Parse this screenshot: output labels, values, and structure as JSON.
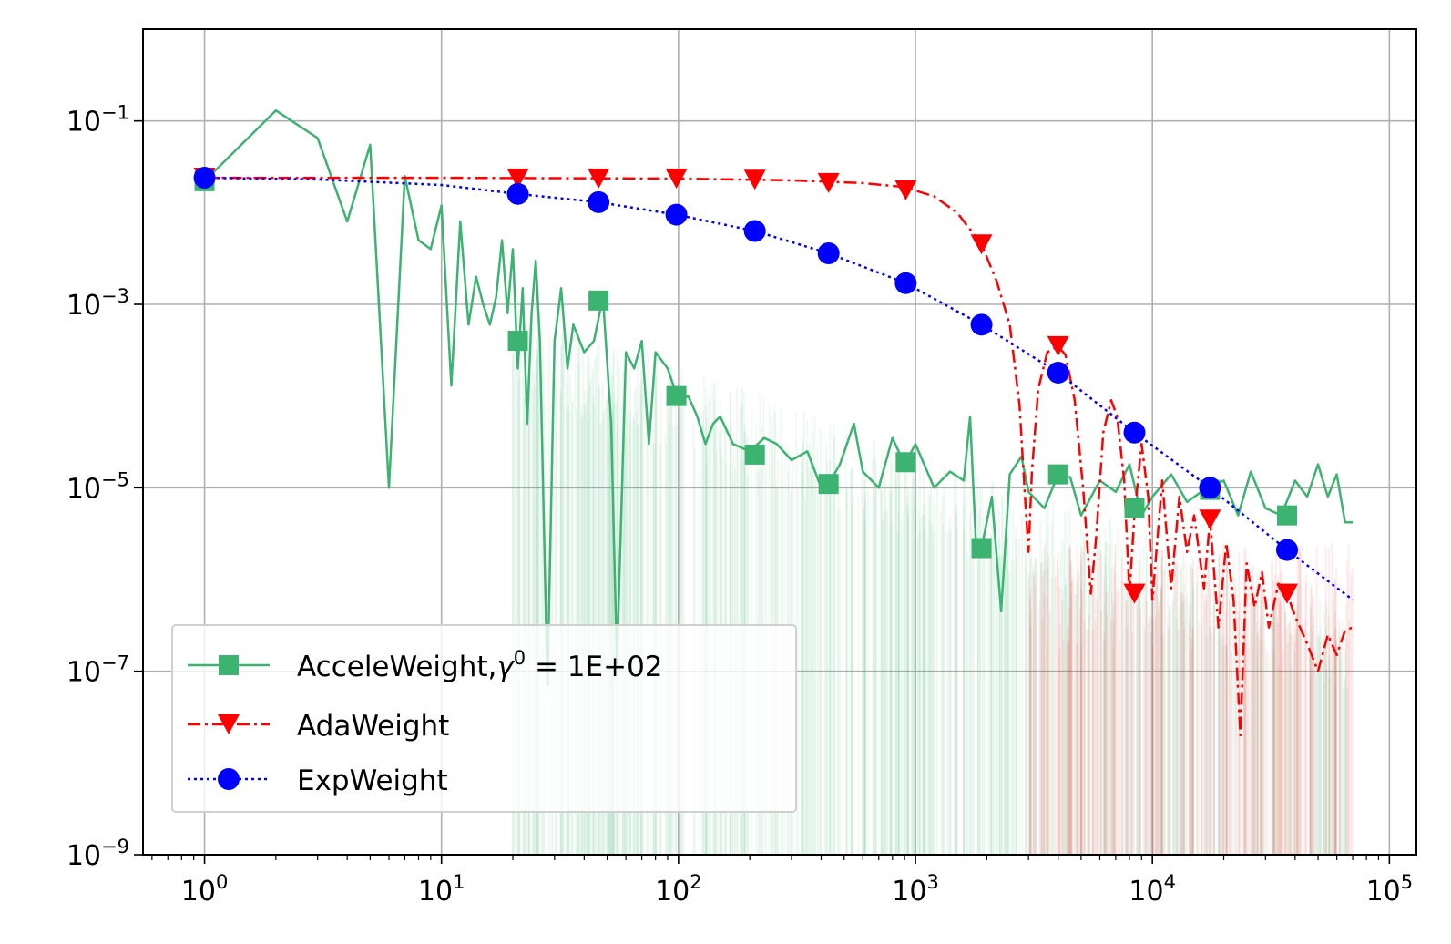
{
  "chart_data": {
    "type": "line",
    "title": "",
    "xlabel": "",
    "ylabel": "",
    "xscale": "log",
    "yscale": "log",
    "xlim": [
      0.55,
      130000
    ],
    "ylim": [
      1e-09,
      1
    ],
    "grid": true,
    "legend_position": "lower-left",
    "x_ticks": [
      {
        "base": "10",
        "exp": "0"
      },
      {
        "base": "10",
        "exp": "1"
      },
      {
        "base": "10",
        "exp": "2"
      },
      {
        "base": "10",
        "exp": "3"
      },
      {
        "base": "10",
        "exp": "4"
      },
      {
        "base": "10",
        "exp": "5"
      }
    ],
    "y_ticks": [
      {
        "base": "10",
        "exp": "−1"
      },
      {
        "base": "10",
        "exp": "−3"
      },
      {
        "base": "10",
        "exp": "−5"
      },
      {
        "base": "10",
        "exp": "−7"
      },
      {
        "base": "10",
        "exp": "−9"
      }
    ],
    "legend_entries": [
      {
        "text_before": "AcceleWeight,",
        "gamma": "γ",
        "sup": "0",
        "text_after": " = 1E+02"
      },
      {
        "text": "AdaWeight"
      },
      {
        "text": "ExpWeight"
      }
    ],
    "series": [
      {
        "color": "#3cb371",
        "linestyle": "solid",
        "marker": "square",
        "line": [
          [
            1,
            0.022
          ],
          [
            2,
            0.13
          ],
          [
            3,
            0.065
          ],
          [
            4,
            0.008
          ],
          [
            5,
            0.055
          ],
          [
            6,
            1e-05
          ],
          [
            7,
            0.025
          ],
          [
            8,
            0.005
          ],
          [
            9,
            0.004
          ],
          [
            10,
            0.012
          ],
          [
            11,
            0.00013
          ],
          [
            12,
            0.008
          ],
          [
            13,
            0.0006
          ],
          [
            14,
            0.002
          ],
          [
            15,
            0.001
          ],
          [
            16,
            0.0006
          ],
          [
            17,
            0.0012
          ],
          [
            18,
            0.005
          ],
          [
            19,
            0.0008
          ],
          [
            20,
            0.004
          ],
          [
            21,
            0.0002
          ],
          [
            22,
            0.0015
          ],
          [
            23,
            5e-05
          ],
          [
            24,
            0.0008
          ],
          [
            25,
            0.003
          ],
          [
            26,
            0.0004
          ],
          [
            28,
            7e-08
          ],
          [
            30,
            0.0004
          ],
          [
            32,
            0.0015
          ],
          [
            34,
            0.0002
          ],
          [
            36,
            0.0006
          ],
          [
            40,
            0.0003
          ],
          [
            44,
            0.0004
          ],
          [
            48,
            0.0012
          ],
          [
            52,
            5e-05
          ],
          [
            55,
            1.2e-07
          ],
          [
            60,
            0.0003
          ],
          [
            65,
            0.0002
          ],
          [
            70,
            0.0004
          ],
          [
            75,
            3e-05
          ],
          [
            80,
            0.0003
          ],
          [
            90,
            0.0002
          ],
          [
            100,
            9e-05
          ],
          [
            110,
            0.0001
          ],
          [
            120,
            6e-05
          ],
          [
            130,
            3e-05
          ],
          [
            140,
            5e-05
          ],
          [
            150,
            6e-05
          ],
          [
            170,
            3e-05
          ],
          [
            200,
            2.5e-05
          ],
          [
            230,
            3.5e-05
          ],
          [
            260,
            3e-05
          ],
          [
            300,
            2e-05
          ],
          [
            350,
            2.5e-05
          ],
          [
            400,
            1e-05
          ],
          [
            430,
            1.1e-05
          ],
          [
            480,
            1.8e-05
          ],
          [
            550,
            5e-05
          ],
          [
            600,
            1.5e-05
          ],
          [
            700,
            1e-05
          ],
          [
            800,
            3.5e-05
          ],
          [
            900,
            1.8e-05
          ],
          [
            1000,
            3e-05
          ],
          [
            1200,
            1e-05
          ],
          [
            1400,
            1.5e-05
          ],
          [
            1600,
            1.2e-05
          ],
          [
            1700,
            6e-05
          ],
          [
            1800,
            2.5e-06
          ],
          [
            1900,
            2.2e-06
          ],
          [
            2100,
            8e-06
          ],
          [
            2300,
            4.5e-07
          ],
          [
            2500,
            1.4e-05
          ],
          [
            2800,
            2.2e-05
          ],
          [
            3000,
            9e-06
          ],
          [
            3500,
            6e-06
          ],
          [
            4000,
            1.4e-05
          ],
          [
            4500,
            1.3e-05
          ],
          [
            5000,
            5e-06
          ],
          [
            6000,
            1.2e-05
          ],
          [
            7000,
            9e-06
          ],
          [
            8000,
            1.8e-05
          ],
          [
            9000,
            5e-06
          ],
          [
            10000,
            8e-06
          ],
          [
            12000,
            1.4e-05
          ],
          [
            14000,
            7e-06
          ],
          [
            17000,
            1e-05
          ],
          [
            20000,
            1.2e-05
          ],
          [
            23000,
            5e-06
          ],
          [
            26000,
            1.5e-05
          ],
          [
            30000,
            6e-06
          ],
          [
            35000,
            5e-06
          ],
          [
            40000,
            1.2e-05
          ],
          [
            45000,
            8e-06
          ],
          [
            50000,
            1.8e-05
          ],
          [
            55000,
            8e-06
          ],
          [
            60000,
            1.4e-05
          ],
          [
            65000,
            4.2e-06
          ],
          [
            70000,
            4.2e-06
          ]
        ],
        "markers": [
          [
            1,
            0.022
          ],
          [
            21,
            0.0004
          ],
          [
            46,
            0.0011
          ],
          [
            98,
            0.0001
          ],
          [
            210,
            2.3e-05
          ],
          [
            430,
            1.1e-05
          ],
          [
            910,
            1.9e-05
          ],
          [
            1900,
            2.2e-06
          ],
          [
            4000,
            1.4e-05
          ],
          [
            8400,
            6e-06
          ],
          [
            17500,
            9.5e-06
          ],
          [
            37000,
            5e-06
          ]
        ]
      },
      {
        "color": "#ff0000",
        "linestyle": "dashdot",
        "marker": "triangle-down",
        "line": [
          [
            1,
            0.024
          ],
          [
            10,
            0.024
          ],
          [
            100,
            0.0235
          ],
          [
            300,
            0.0225
          ],
          [
            600,
            0.021
          ],
          [
            900,
            0.019
          ],
          [
            1200,
            0.015
          ],
          [
            1500,
            0.01
          ],
          [
            1900,
            0.0045
          ],
          [
            2200,
            0.0018
          ],
          [
            2500,
            0.0006
          ],
          [
            2750,
            8e-05
          ],
          [
            2900,
            8e-06
          ],
          [
            3000,
            2e-06
          ],
          [
            3100,
            1.5e-05
          ],
          [
            3300,
            0.00012
          ],
          [
            3600,
            0.0003
          ],
          [
            4000,
            0.00035
          ],
          [
            4300,
            0.00028
          ],
          [
            4700,
            9e-05
          ],
          [
            5100,
            1e-05
          ],
          [
            5500,
            7e-07
          ],
          [
            5800,
            3e-06
          ],
          [
            6200,
            4e-05
          ],
          [
            6700,
            9e-05
          ],
          [
            7100,
            6e-05
          ],
          [
            7600,
            1.2e-05
          ],
          [
            8000,
            7e-07
          ],
          [
            8400,
            5e-06
          ],
          [
            9000,
            3e-05
          ],
          [
            9600,
            8e-06
          ],
          [
            10000,
            6e-07
          ],
          [
            11000,
            1.2e-05
          ],
          [
            12000,
            8e-07
          ],
          [
            13000,
            8e-06
          ],
          [
            14000,
            2e-06
          ],
          [
            15000,
            5e-06
          ],
          [
            16500,
            8e-07
          ],
          [
            17500,
            4.5e-06
          ],
          [
            19000,
            3e-07
          ],
          [
            20500,
            2.5e-06
          ],
          [
            22000,
            6e-07
          ],
          [
            23500,
            2e-08
          ],
          [
            25000,
            1.5e-06
          ],
          [
            27000,
            5e-07
          ],
          [
            29000,
            1.2e-06
          ],
          [
            31000,
            3e-07
          ],
          [
            34000,
            9e-07
          ],
          [
            37000,
            7e-07
          ],
          [
            40000,
            4e-07
          ],
          [
            45000,
            2e-07
          ],
          [
            50000,
            1e-07
          ],
          [
            55000,
            2.5e-07
          ],
          [
            60000,
            1.5e-07
          ],
          [
            65000,
            2.8e-07
          ],
          [
            70000,
            3e-07
          ]
        ],
        "markers": [
          [
            1,
            0.024
          ],
          [
            21,
            0.0235
          ],
          [
            46,
            0.0235
          ],
          [
            98,
            0.0235
          ],
          [
            210,
            0.0228
          ],
          [
            430,
            0.021
          ],
          [
            910,
            0.0175
          ],
          [
            1900,
            0.0045
          ],
          [
            4000,
            0.00035
          ],
          [
            8400,
            7e-07
          ],
          [
            17500,
            4.5e-06
          ],
          [
            37000,
            7e-07
          ]
        ]
      },
      {
        "color": "#0000ff",
        "linestyle": "dotted",
        "marker": "circle",
        "line": [
          [
            1,
            0.024
          ],
          [
            3,
            0.023
          ],
          [
            10,
            0.02
          ],
          [
            21,
            0.016
          ],
          [
            46,
            0.013
          ],
          [
            98,
            0.0095
          ],
          [
            210,
            0.0063
          ],
          [
            430,
            0.0036
          ],
          [
            910,
            0.0017
          ],
          [
            1900,
            0.0006
          ],
          [
            4000,
            0.00018
          ],
          [
            8400,
            4e-05
          ],
          [
            17500,
            1e-05
          ],
          [
            37000,
            2.1e-06
          ],
          [
            70000,
            6e-07
          ]
        ],
        "markers": [
          [
            1,
            0.024
          ],
          [
            21,
            0.016
          ],
          [
            46,
            0.013
          ],
          [
            98,
            0.0095
          ],
          [
            210,
            0.0063
          ],
          [
            430,
            0.0036
          ],
          [
            910,
            0.0017
          ],
          [
            1900,
            0.0006
          ],
          [
            4000,
            0.00018
          ],
          [
            8400,
            4e-05
          ],
          [
            17500,
            1e-05
          ],
          [
            37000,
            2.1e-06
          ]
        ]
      }
    ]
  }
}
